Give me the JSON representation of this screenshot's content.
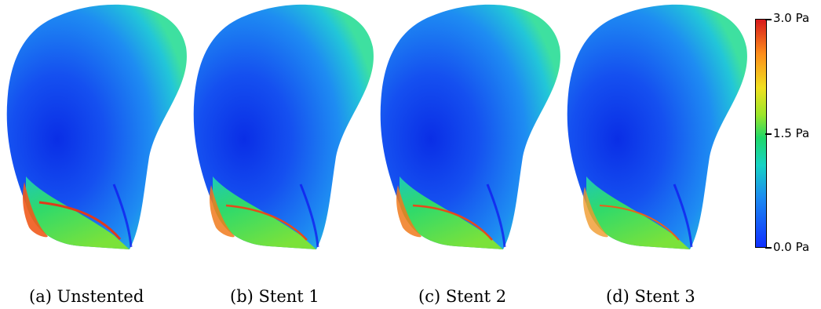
{
  "panels": [
    {
      "caption": "(a) Unstented"
    },
    {
      "caption": "(b) Stent 1"
    },
    {
      "caption": "(c) Stent 2"
    },
    {
      "caption": "(d) Stent 3"
    }
  ],
  "colorbar": {
    "max_label": "3.0 Pa",
    "mid_label": "1.5 Pa",
    "min_label": "0.0 Pa",
    "colors": [
      "#d7191c",
      "#f0e020",
      "#1fd86a",
      "#16d3c4",
      "#1030ff"
    ]
  }
}
